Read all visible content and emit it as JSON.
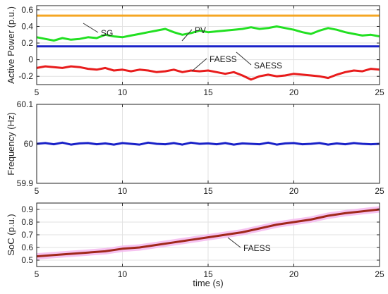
{
  "chart_data": [
    {
      "type": "line",
      "ylabel": "Active Power (p.u.)",
      "xlim": [
        5,
        25
      ],
      "ylim": [
        -0.3,
        0.65
      ],
      "xticks": [
        5,
        10,
        15,
        20,
        25
      ],
      "yticks": [
        -0.2,
        0,
        0.2,
        0.4,
        0.6
      ],
      "ytick_labels": [
        "-0.2",
        "0",
        "0.2",
        "0.4",
        "0.6"
      ],
      "grid": true,
      "series": [
        {
          "name": "SG",
          "color": "#f5a623",
          "x": [
            5,
            7,
            9,
            11,
            13,
            15,
            17,
            19,
            21,
            23,
            25
          ],
          "values": [
            0.53,
            0.53,
            0.53,
            0.53,
            0.53,
            0.53,
            0.53,
            0.53,
            0.53,
            0.53,
            0.53
          ]
        },
        {
          "name": "PV",
          "color": "#22e022",
          "x": [
            5,
            5.5,
            6,
            6.5,
            7,
            7.5,
            8,
            8.5,
            9,
            9.5,
            10,
            10.5,
            11,
            11.5,
            12,
            12.5,
            13,
            13.5,
            14,
            14.5,
            15,
            15.5,
            16,
            16.5,
            17,
            17.5,
            18,
            18.5,
            19,
            19.5,
            20,
            20.5,
            21,
            21.5,
            22,
            22.5,
            23,
            23.5,
            24,
            24.5,
            25
          ],
          "values": [
            0.27,
            0.25,
            0.23,
            0.26,
            0.24,
            0.25,
            0.27,
            0.26,
            0.3,
            0.28,
            0.27,
            0.29,
            0.31,
            0.33,
            0.35,
            0.37,
            0.33,
            0.3,
            0.32,
            0.35,
            0.33,
            0.34,
            0.35,
            0.36,
            0.37,
            0.39,
            0.37,
            0.38,
            0.4,
            0.38,
            0.36,
            0.33,
            0.31,
            0.35,
            0.38,
            0.36,
            0.33,
            0.31,
            0.29,
            0.3,
            0.28
          ]
        },
        {
          "name": "SAESS",
          "color": "#1a22c8",
          "x": [
            5,
            7,
            9,
            11,
            13,
            15,
            17,
            19,
            21,
            23,
            25
          ],
          "values": [
            0.16,
            0.16,
            0.16,
            0.16,
            0.16,
            0.16,
            0.16,
            0.16,
            0.16,
            0.16,
            0.16
          ]
        },
        {
          "name": "FAESS",
          "color": "#e81c1c",
          "x": [
            5,
            5.5,
            6,
            6.5,
            7,
            7.5,
            8,
            8.5,
            9,
            9.5,
            10,
            10.5,
            11,
            11.5,
            12,
            12.5,
            13,
            13.5,
            14,
            14.5,
            15,
            15.5,
            16,
            16.5,
            17,
            17.5,
            18,
            18.5,
            19,
            19.5,
            20,
            20.5,
            21,
            21.5,
            22,
            22.5,
            23,
            23.5,
            24,
            24.5,
            25
          ],
          "values": [
            -0.1,
            -0.08,
            -0.09,
            -0.1,
            -0.08,
            -0.09,
            -0.11,
            -0.12,
            -0.1,
            -0.13,
            -0.12,
            -0.14,
            -0.12,
            -0.13,
            -0.15,
            -0.14,
            -0.12,
            -0.15,
            -0.13,
            -0.14,
            -0.13,
            -0.15,
            -0.17,
            -0.15,
            -0.19,
            -0.24,
            -0.2,
            -0.18,
            -0.2,
            -0.19,
            -0.17,
            -0.18,
            -0.19,
            -0.2,
            -0.22,
            -0.18,
            -0.15,
            -0.13,
            -0.14,
            -0.11,
            -0.12
          ]
        }
      ],
      "annotations": [
        {
          "text": "SG",
          "series": "SG"
        },
        {
          "text": "PV",
          "series": "PV"
        },
        {
          "text": "FAESS",
          "series": "FAESS"
        },
        {
          "text": "SAESS",
          "series": "SAESS"
        }
      ]
    },
    {
      "type": "line",
      "ylabel": "Frequency (Hz)",
      "xlim": [
        5,
        25
      ],
      "ylim": [
        59.9,
        60.1
      ],
      "xticks": [
        5,
        10,
        15,
        20,
        25
      ],
      "yticks": [
        59.9,
        60,
        60.1
      ],
      "ytick_labels": [
        "59.9",
        "60",
        "60.1"
      ],
      "grid": true,
      "series": [
        {
          "name": "",
          "color": "#1a22c8",
          "x": [
            5,
            5.5,
            6,
            6.5,
            7,
            7.5,
            8,
            8.5,
            9,
            9.5,
            10,
            10.5,
            11,
            11.5,
            12,
            12.5,
            13,
            13.5,
            14,
            14.5,
            15,
            15.5,
            16,
            16.5,
            17,
            17.5,
            18,
            18.5,
            19,
            19.5,
            20,
            20.5,
            21,
            21.5,
            22,
            22.5,
            23,
            23.5,
            24,
            24.5,
            25
          ],
          "values": [
            60.0,
            60.002,
            59.999,
            60.003,
            59.998,
            60.001,
            60.002,
            59.999,
            60.001,
            59.998,
            60.002,
            60.0,
            59.998,
            60.003,
            60.0,
            59.999,
            60.002,
            59.998,
            60.003,
            60.0,
            60.001,
            59.999,
            60.002,
            59.998,
            60.001,
            60.0,
            59.999,
            60.003,
            59.998,
            60.001,
            60.002,
            59.999,
            60.0,
            60.002,
            59.998,
            60.001,
            59.999,
            60.002,
            60.0,
            59.999,
            60.0
          ]
        }
      ]
    },
    {
      "type": "line",
      "xlabel": "time (s)",
      "ylabel": "SoC (p.u.)",
      "xlim": [
        5,
        25
      ],
      "ylim": [
        0.45,
        0.95
      ],
      "xticks": [
        5,
        10,
        15,
        20,
        25
      ],
      "yticks": [
        0.5,
        0.6,
        0.7,
        0.8,
        0.9
      ],
      "ytick_labels": [
        "0.5",
        "0.6",
        "0.7",
        "0.8",
        "0.9"
      ],
      "grid": true,
      "series": [
        {
          "name": "FAESS",
          "color": "#a0281a",
          "band_color": "#f4b8ee",
          "x": [
            5,
            6,
            7,
            8,
            9,
            10,
            11,
            12,
            13,
            14,
            15,
            16,
            17,
            18,
            19,
            20,
            21,
            22,
            23,
            24,
            25
          ],
          "values": [
            0.53,
            0.54,
            0.55,
            0.56,
            0.57,
            0.59,
            0.6,
            0.62,
            0.64,
            0.66,
            0.68,
            0.7,
            0.72,
            0.75,
            0.78,
            0.8,
            0.82,
            0.85,
            0.87,
            0.885,
            0.9
          ]
        }
      ],
      "annotations": [
        {
          "text": "FAESS",
          "series": "FAESS"
        }
      ]
    }
  ]
}
